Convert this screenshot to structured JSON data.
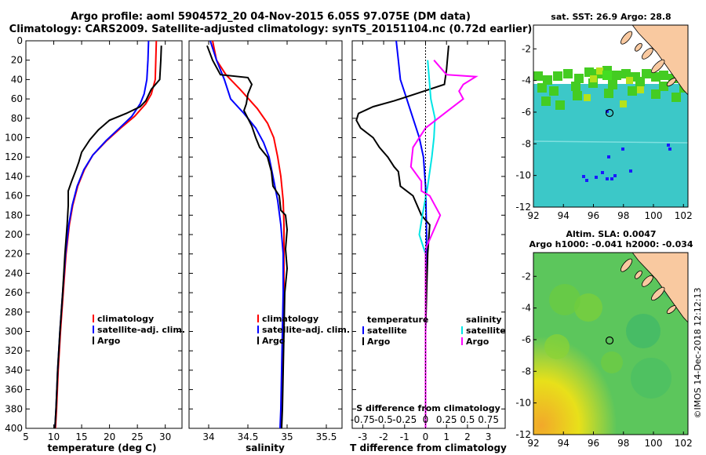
{
  "header": {
    "title_line1": "Argo profile: aoml 5904572_20 04-Nov-2015 6.05S 97.075E (DM data)",
    "title_line2": "Climatology: CARS2009. Satellite-adjusted climatology: synTS_20151104.nc (0.72d earlier)"
  },
  "colors": {
    "climatology": "#ff0000",
    "satellite": "#0000ff",
    "argo": "#000000",
    "sal_satellite": "#00e5e5",
    "sal_argo": "#ff00ff",
    "land": "#f9c9a0",
    "sst_ocean": "#3cc8c8",
    "sla_ocean": "#5cc65c"
  },
  "chart_data": [
    {
      "type": "line",
      "name": "temperature",
      "xlabel": "temperature (deg C)",
      "ylabel": "",
      "xlim": [
        5,
        33
      ],
      "ylim": [
        400,
        0
      ],
      "xticks": [
        5,
        10,
        15,
        20,
        25,
        30
      ],
      "yticks": [
        0,
        20,
        40,
        60,
        80,
        100,
        120,
        140,
        160,
        180,
        200,
        220,
        240,
        260,
        280,
        300,
        320,
        340,
        360,
        380,
        400
      ],
      "legend": [
        "climatology",
        "satellite-adj. clim.",
        "Argo"
      ],
      "series": [
        {
          "name": "climatology",
          "color": "#ff0000",
          "points": [
            [
              28.4,
              0
            ],
            [
              28.3,
              20
            ],
            [
              28.2,
              40
            ],
            [
              27.5,
              55
            ],
            [
              26.5,
              65
            ],
            [
              24.5,
              78
            ],
            [
              22,
              90
            ],
            [
              19.5,
              103
            ],
            [
              17,
              118
            ],
            [
              15.5,
              133
            ],
            [
              14.3,
              150
            ],
            [
              13.4,
              170
            ],
            [
              12.8,
              190
            ],
            [
              12.2,
              220
            ],
            [
              11.7,
              260
            ],
            [
              11.2,
              300
            ],
            [
              10.8,
              340
            ],
            [
              10.5,
              380
            ],
            [
              10.3,
              400
            ]
          ]
        },
        {
          "name": "satellite-adj. clim.",
          "color": "#0000ff",
          "points": [
            [
              27,
              0
            ],
            [
              26.9,
              20
            ],
            [
              26.7,
              40
            ],
            [
              26.2,
              55
            ],
            [
              25.5,
              65
            ],
            [
              24,
              78
            ],
            [
              21.8,
              90
            ],
            [
              19.4,
              103
            ],
            [
              17,
              118
            ],
            [
              15.4,
              133
            ],
            [
              14.2,
              150
            ],
            [
              13.3,
              170
            ],
            [
              12.7,
              190
            ],
            [
              12.1,
              220
            ],
            [
              11.6,
              260
            ],
            [
              11.1,
              300
            ],
            [
              10.7,
              340
            ],
            [
              10.4,
              380
            ],
            [
              10.2,
              400
            ]
          ]
        },
        {
          "name": "Argo",
          "color": "#000000",
          "points": [
            [
              29.3,
              5
            ],
            [
              29.2,
              20
            ],
            [
              29.1,
              30
            ],
            [
              29,
              40
            ],
            [
              27.5,
              50
            ],
            [
              26.5,
              62
            ],
            [
              25.5,
              68
            ],
            [
              23,
              75
            ],
            [
              20,
              82
            ],
            [
              18,
              92
            ],
            [
              16.5,
              102
            ],
            [
              15,
              115
            ],
            [
              14.5,
              125
            ],
            [
              14,
              133
            ],
            [
              13.2,
              145
            ],
            [
              12.6,
              155
            ],
            [
              12.6,
              170
            ],
            [
              12.4,
              190
            ],
            [
              12,
              220
            ],
            [
              11.6,
              260
            ],
            [
              11.1,
              300
            ],
            [
              10.7,
              340
            ],
            [
              10.4,
              380
            ],
            [
              10.2,
              400
            ]
          ]
        }
      ]
    },
    {
      "type": "line",
      "name": "salinity",
      "xlabel": "salinity",
      "ylabel": "",
      "xlim": [
        33.75,
        35.7
      ],
      "ylim": [
        400,
        0
      ],
      "xticks": [
        34,
        34.5,
        35,
        35.5
      ],
      "legend": [
        "climatology",
        "satellite-adj. clim.",
        "Argo"
      ],
      "series": [
        {
          "name": "climatology",
          "color": "#ff0000",
          "points": [
            [
              34.05,
              0
            ],
            [
              34.1,
              20
            ],
            [
              34.22,
              35
            ],
            [
              34.4,
              50
            ],
            [
              34.62,
              70
            ],
            [
              34.75,
              85
            ],
            [
              34.83,
              100
            ],
            [
              34.88,
              120
            ],
            [
              34.92,
              140
            ],
            [
              34.95,
              165
            ],
            [
              34.96,
              190
            ],
            [
              34.96,
              220
            ],
            [
              34.96,
              260
            ],
            [
              34.95,
              300
            ],
            [
              34.94,
              340
            ],
            [
              34.93,
              380
            ],
            [
              34.92,
              400
            ]
          ]
        },
        {
          "name": "satellite-adj. clim.",
          "color": "#0000ff",
          "points": [
            [
              34.02,
              0
            ],
            [
              34.1,
              20
            ],
            [
              34.2,
              40
            ],
            [
              34.28,
              60
            ],
            [
              34.45,
              75
            ],
            [
              34.6,
              90
            ],
            [
              34.7,
              105
            ],
            [
              34.77,
              120
            ],
            [
              34.82,
              140
            ],
            [
              34.88,
              165
            ],
            [
              34.92,
              190
            ],
            [
              34.95,
              220
            ],
            [
              34.95,
              260
            ],
            [
              34.94,
              300
            ],
            [
              34.93,
              340
            ],
            [
              34.92,
              380
            ],
            [
              34.91,
              400
            ]
          ]
        },
        {
          "name": "Argo",
          "color": "#000000",
          "points": [
            [
              33.98,
              5
            ],
            [
              34.05,
              20
            ],
            [
              34.15,
              35
            ],
            [
              34.5,
              38
            ],
            [
              34.55,
              45
            ],
            [
              34.5,
              55
            ],
            [
              34.48,
              65
            ],
            [
              34.45,
              72
            ],
            [
              34.5,
              80
            ],
            [
              34.55,
              88
            ],
            [
              34.6,
              100
            ],
            [
              34.65,
              110
            ],
            [
              34.75,
              120
            ],
            [
              34.8,
              135
            ],
            [
              34.82,
              150
            ],
            [
              34.9,
              160
            ],
            [
              34.92,
              175
            ],
            [
              34.98,
              180
            ],
            [
              35.0,
              195
            ],
            [
              34.98,
              215
            ],
            [
              35.0,
              235
            ],
            [
              34.97,
              260
            ],
            [
              34.96,
              300
            ],
            [
              34.95,
              340
            ],
            [
              34.94,
              380
            ],
            [
              34.93,
              400
            ]
          ]
        }
      ]
    },
    {
      "type": "line",
      "name": "difference",
      "xlabel": "T difference from climatology",
      "top_xlabel": "S difference from climatology",
      "xlim": [
        -3.5,
        3.8
      ],
      "ylim": [
        400,
        0
      ],
      "xticks": [
        -3,
        -2,
        -1,
        0,
        1,
        2,
        3
      ],
      "s_xticks": [
        "-0.75",
        "-0.5",
        "-0.25",
        "0",
        "0.25",
        "0.5",
        "0.75"
      ],
      "legend_temperature": {
        "header": "temperature",
        "satellite": "satellite",
        "argo": "Argo"
      },
      "legend_salinity": {
        "header": "salinity",
        "satellite": "satellite",
        "argo": "Argo"
      },
      "series": [
        {
          "name": "T satellite",
          "color": "#0000ff",
          "points": [
            [
              -1.4,
              0
            ],
            [
              -1.3,
              20
            ],
            [
              -1.2,
              40
            ],
            [
              -0.9,
              60
            ],
            [
              -0.6,
              80
            ],
            [
              -0.3,
              100
            ],
            [
              -0.1,
              120
            ],
            [
              0,
              150
            ],
            [
              0.05,
              200
            ],
            [
              0,
              300
            ],
            [
              0,
              400
            ]
          ]
        },
        {
          "name": "T Argo",
          "color": "#000000",
          "points": [
            [
              1.1,
              5
            ],
            [
              1.0,
              30
            ],
            [
              0.9,
              45
            ],
            [
              -0.5,
              55
            ],
            [
              -1.5,
              62
            ],
            [
              -2.5,
              68
            ],
            [
              -3.2,
              75
            ],
            [
              -3.3,
              82
            ],
            [
              -3.1,
              90
            ],
            [
              -2.5,
              100
            ],
            [
              -2.2,
              110
            ],
            [
              -1.8,
              120
            ],
            [
              -1.5,
              130
            ],
            [
              -1.3,
              135
            ],
            [
              -1.2,
              150
            ],
            [
              -0.6,
              160
            ],
            [
              -0.2,
              180
            ],
            [
              0.2,
              190
            ],
            [
              0.1,
              220
            ],
            [
              0.05,
              260
            ],
            [
              0,
              300
            ],
            [
              0,
              400
            ]
          ]
        },
        {
          "name": "S satellite",
          "color": "#00e5e5",
          "points": [
            [
              0.1,
              20
            ],
            [
              0.25,
              60
            ],
            [
              0.45,
              80
            ],
            [
              0.4,
              100
            ],
            [
              0.3,
              120
            ],
            [
              0.1,
              150
            ],
            [
              -0.15,
              180
            ],
            [
              -0.3,
              200
            ],
            [
              0,
              220
            ],
            [
              0,
              260
            ],
            [
              0,
              400
            ]
          ]
        },
        {
          "name": "S Argo",
          "color": "#ff00ff",
          "points": [
            [
              0.4,
              20
            ],
            [
              1.0,
              35
            ],
            [
              2.4,
              37
            ],
            [
              1.8,
              45
            ],
            [
              1.6,
              52
            ],
            [
              1.8,
              60
            ],
            [
              1.2,
              70
            ],
            [
              0.6,
              80
            ],
            [
              0,
              90
            ],
            [
              -0.6,
              110
            ],
            [
              -0.7,
              130
            ],
            [
              -0.2,
              145
            ],
            [
              -0.2,
              155
            ],
            [
              0.2,
              160
            ],
            [
              0.7,
              180
            ],
            [
              0.3,
              200
            ],
            [
              0,
              215
            ],
            [
              0,
              260
            ],
            [
              0,
              400
            ]
          ]
        }
      ]
    },
    {
      "type": "heatmap",
      "name": "sst_map",
      "title": "sat. SST: 26.9 Argo: 28.8",
      "xlim": [
        92,
        102.3
      ],
      "ylim": [
        -12,
        -0.5
      ],
      "xticks": [
        92,
        94,
        96,
        98,
        100,
        102
      ],
      "yticks": [
        -2,
        -4,
        -6,
        -8,
        -10,
        -12
      ],
      "argo_position": [
        97.075,
        -6.05
      ]
    },
    {
      "type": "heatmap",
      "name": "sla_map",
      "title": "Altim. SLA: 0.0047",
      "title_line2": "Argo h1000: -0.041 h2000: -0.034",
      "xlim": [
        92,
        102.3
      ],
      "ylim": [
        -12,
        -0.5
      ],
      "xticks": [
        92,
        94,
        96,
        98,
        100,
        102
      ],
      "yticks": [
        -2,
        -4,
        -6,
        -8,
        -10,
        -12
      ],
      "argo_position": [
        97.075,
        -6.05
      ]
    }
  ],
  "footer": {
    "stamp": "©IMOS 14-Dec-2018 12:12:13"
  }
}
